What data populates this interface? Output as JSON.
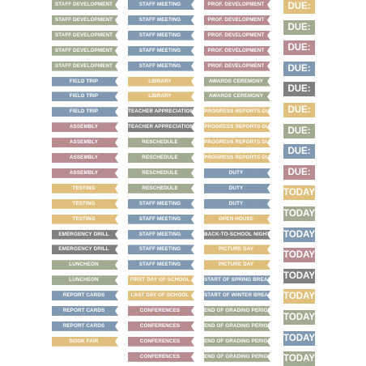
{
  "colors": {
    "green": "#9fab8f",
    "blue": "#7e98b2",
    "red": "#b88a8f",
    "yellow": "#e3c07a",
    "gray": "#7d7c7e"
  },
  "columns": [
    {
      "id": "col1",
      "items": [
        {
          "text": "STAFF DEVELOPMENT",
          "color": "green"
        },
        {
          "text": "STAFF DEVELOPMENT",
          "color": "green"
        },
        {
          "text": "STAFF DEVELOPMENT",
          "color": "green"
        },
        {
          "text": "STAFF DEVELOPMENT",
          "color": "green"
        },
        {
          "text": "STAFF DEVELOPMENT",
          "color": "green"
        },
        {
          "text": "FIELD TRIP",
          "color": "blue"
        },
        {
          "text": "FIELD TRIP",
          "color": "blue"
        },
        {
          "text": "FIELD TRIP",
          "color": "blue"
        },
        {
          "text": "ASSEMBLY",
          "color": "red"
        },
        {
          "text": "ASSEMBLY",
          "color": "red"
        },
        {
          "text": "ASSEMBLY",
          "color": "red"
        },
        {
          "text": "ASSEMBLY",
          "color": "red"
        },
        {
          "text": "TESTING",
          "color": "yellow"
        },
        {
          "text": "TESTING",
          "color": "yellow"
        },
        {
          "text": "TESTING",
          "color": "yellow"
        },
        {
          "text": "EMERGENCY DRILL",
          "color": "gray"
        },
        {
          "text": "EMERGENCY DRILL",
          "color": "gray"
        },
        {
          "text": "LUNCHEON",
          "color": "green"
        },
        {
          "text": "LUNCHEON",
          "color": "green"
        },
        {
          "text": "REPORT CARDS",
          "color": "blue"
        },
        {
          "text": "REPORT CARDS",
          "color": "blue"
        },
        {
          "text": "REPORT CARDS",
          "color": "blue"
        },
        {
          "text": "BOOK FAIR",
          "color": "yellow"
        }
      ]
    },
    {
      "id": "col2",
      "items": [
        {
          "text": "STAFF MEETING",
          "color": "blue"
        },
        {
          "text": "STAFF MEETING",
          "color": "blue"
        },
        {
          "text": "STAFF MEETING",
          "color": "blue"
        },
        {
          "text": "STAFF MEETING",
          "color": "blue"
        },
        {
          "text": "STAFF MEETING",
          "color": "blue"
        },
        {
          "text": "LIBRARY",
          "color": "yellow"
        },
        {
          "text": "LIBRARY",
          "color": "yellow"
        },
        {
          "text": "TEACHER APPRECIATION",
          "color": "gray"
        },
        {
          "text": "TEACHER APPRECIATION",
          "color": "gray"
        },
        {
          "text": "RESCHEDULE",
          "color": "green"
        },
        {
          "text": "RESCHEDULE",
          "color": "green"
        },
        {
          "text": "RESCHEDULE",
          "color": "green"
        },
        {
          "text": "RESCHEDULE",
          "color": "green"
        },
        {
          "text": "STAFF MEETING",
          "color": "blue"
        },
        {
          "text": "STAFF MEETING",
          "color": "blue"
        },
        {
          "text": "STAFF MEETING",
          "color": "blue"
        },
        {
          "text": "STAFF MEETING",
          "color": "blue"
        },
        {
          "text": "STAFF MEETING",
          "color": "blue"
        },
        {
          "text": "FIRST DAY OF SCHOOL",
          "color": "yellow"
        },
        {
          "text": "LAST DAY OF SCHOOL",
          "color": "yellow"
        },
        {
          "text": "CONFERENCES",
          "color": "red"
        },
        {
          "text": "CONFERENCES",
          "color": "red"
        },
        {
          "text": "CONFERENCES",
          "color": "red"
        },
        {
          "text": "CONFERENCES",
          "color": "red"
        }
      ]
    },
    {
      "id": "col3",
      "items": [
        {
          "text": "PROF. DEVELOPMENT",
          "color": "red"
        },
        {
          "text": "PROF. DEVELOPMENT",
          "color": "red"
        },
        {
          "text": "PROF. DEVELOPMENT",
          "color": "red"
        },
        {
          "text": "PROF. DEVELOPMENT",
          "color": "red"
        },
        {
          "text": "PROF. DEVELOPMENT",
          "color": "red"
        },
        {
          "text": "AWARDS CEREMONY",
          "color": "green"
        },
        {
          "text": "AWARDS CEREMONY",
          "color": "green"
        },
        {
          "text": "PROGRESS REPORTS DUE",
          "color": "yellow"
        },
        {
          "text": "PROGRESS REPORTS DUE",
          "color": "yellow"
        },
        {
          "text": "PROGRESS REPORTS DUE",
          "color": "yellow"
        },
        {
          "text": "PROGRESS REPORTS DUE",
          "color": "yellow"
        },
        {
          "text": "DUTY",
          "color": "blue"
        },
        {
          "text": "DUTY",
          "color": "blue"
        },
        {
          "text": "DUTY",
          "color": "blue"
        },
        {
          "text": "OPEN HOUSE",
          "color": "yellow"
        },
        {
          "text": "BACK-TO-SCHOOL NIGHT",
          "color": "gray"
        },
        {
          "text": "PICTURE DAY",
          "color": "yellow"
        },
        {
          "text": "PICTURE DAY",
          "color": "yellow"
        },
        {
          "text": "START OF SPRING BREAK",
          "color": "blue"
        },
        {
          "text": "START OF WINTER BREAK",
          "color": "blue"
        },
        {
          "text": "END OF GRADING PERIOD",
          "color": "green"
        },
        {
          "text": "END OF GRADING PERIOD",
          "color": "green"
        },
        {
          "text": "END OF GRADING PERIOD",
          "color": "green"
        },
        {
          "text": "END OF GRADING PERIOD",
          "color": "green"
        }
      ]
    },
    {
      "id": "col4",
      "items": [
        {
          "text": "DUE:",
          "color": "yellow"
        },
        {
          "text": "DUE:",
          "color": "green"
        },
        {
          "text": "DUE:",
          "color": "red"
        },
        {
          "text": "DUE:",
          "color": "blue"
        },
        {
          "text": "DUE:",
          "color": "gray"
        },
        {
          "text": "DUE:",
          "color": "yellow"
        },
        {
          "text": "DUE:",
          "color": "green"
        },
        {
          "text": "DUE:",
          "color": "blue"
        },
        {
          "text": "DUE:",
          "color": "red"
        },
        {
          "text": "TODAY",
          "color": "yellow"
        },
        {
          "text": "TODAY",
          "color": "green"
        },
        {
          "text": "TODAY",
          "color": "blue"
        },
        {
          "text": "TODAY",
          "color": "red"
        },
        {
          "text": "TODAY",
          "color": "gray"
        },
        {
          "text": "TODAY",
          "color": "yellow"
        },
        {
          "text": "TODAY",
          "color": "green"
        },
        {
          "text": "TODAY",
          "color": "blue"
        },
        {
          "text": "TODAY",
          "color": "green"
        }
      ]
    }
  ]
}
